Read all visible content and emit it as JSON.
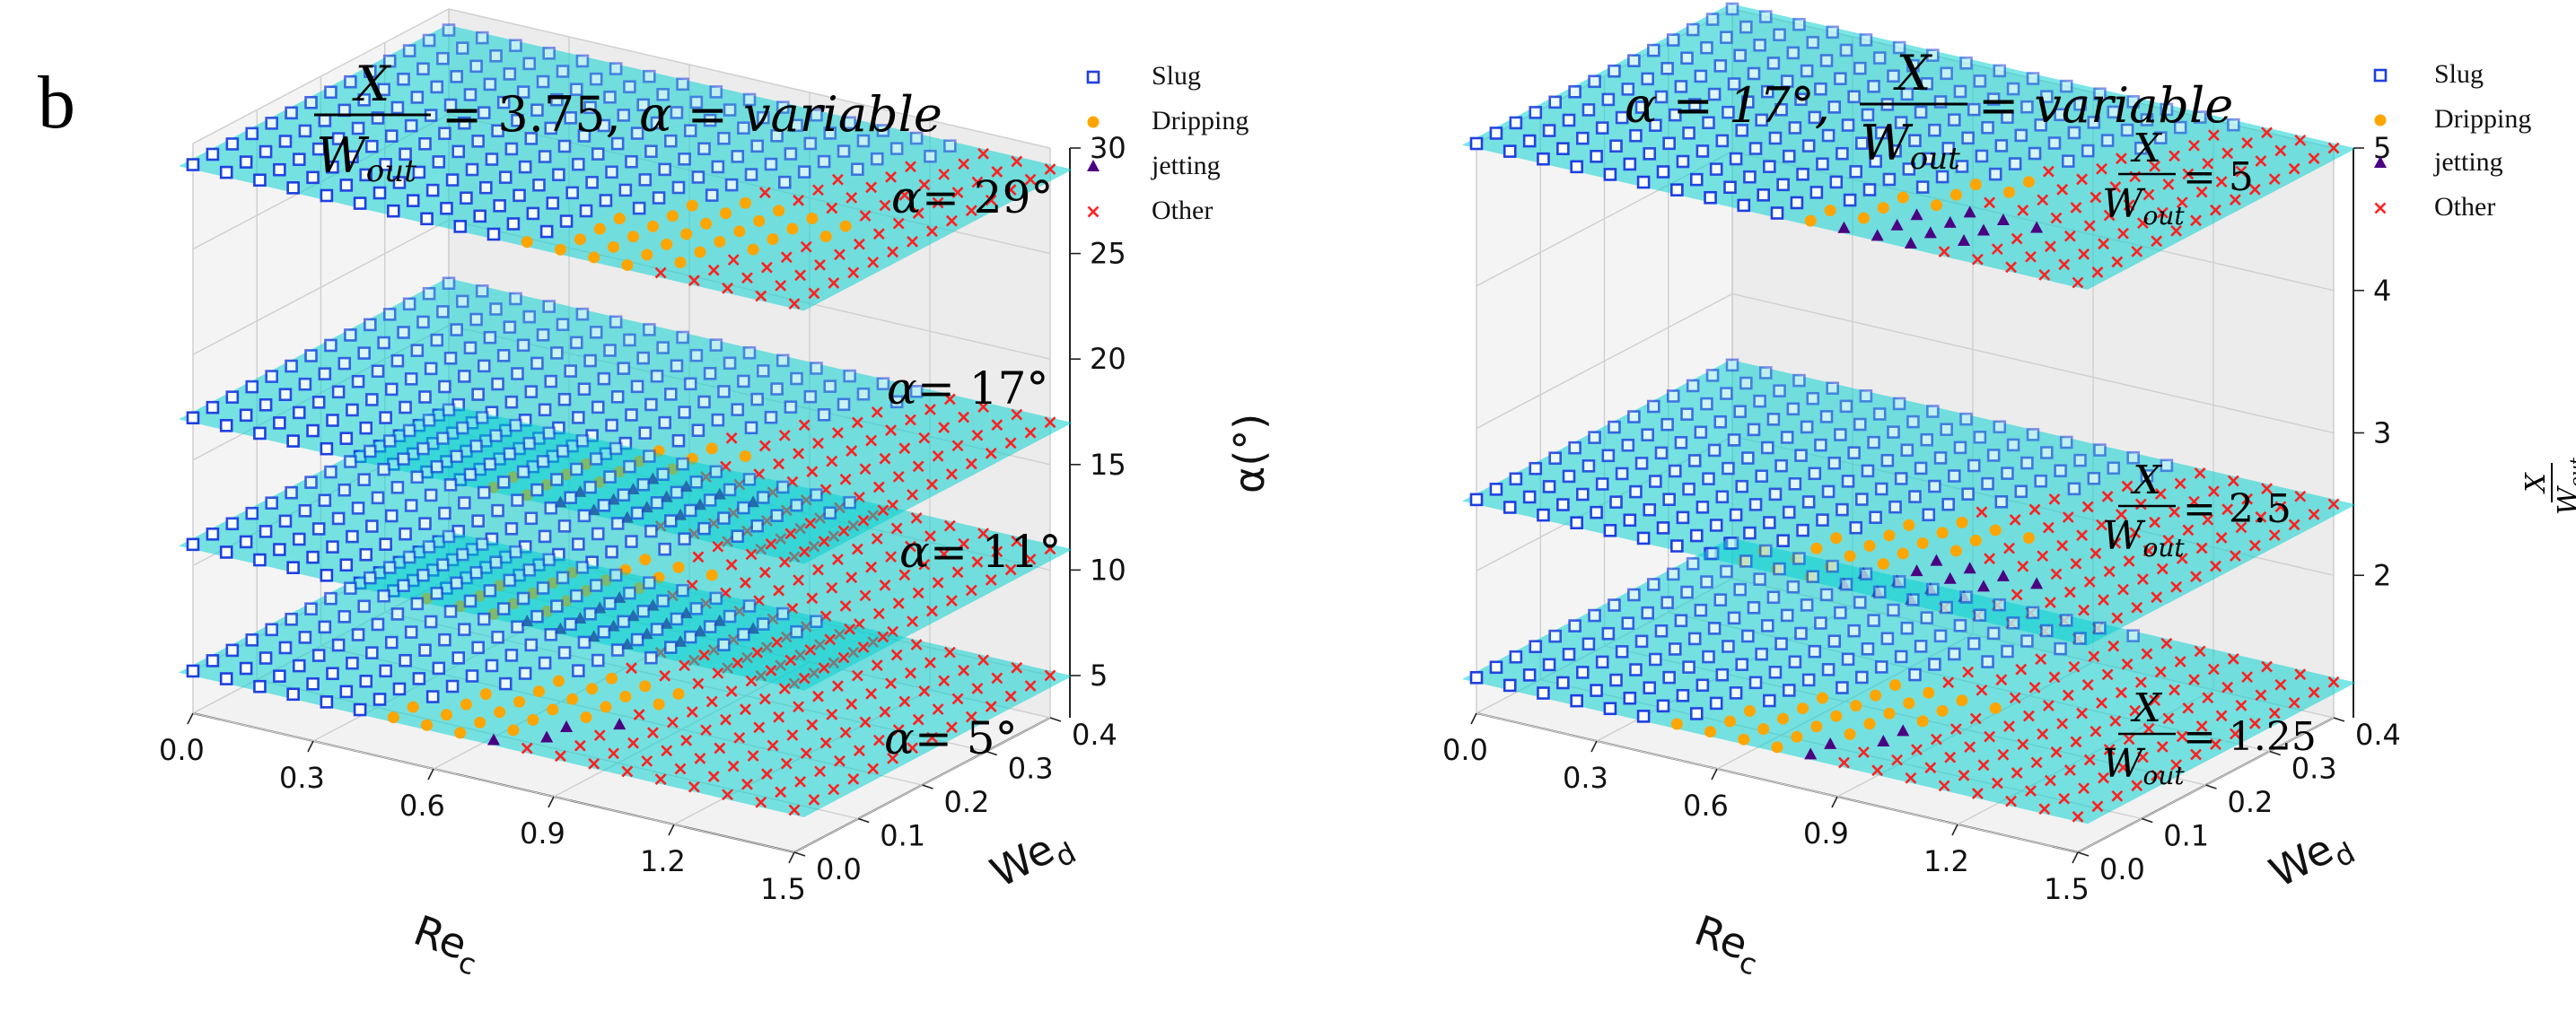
{
  "figure": {
    "panel_label": "b"
  },
  "chart_data": [
    {
      "type": "scatter3d",
      "title": "X/W_out = 3.75, α = variable",
      "title_parts": {
        "frac_num": "X",
        "frac_den_base": "W",
        "frac_den_sub": "out",
        "eq_value": "= 3.75,",
        "alpha_part": "α = variable"
      },
      "xlabel": "Re_c",
      "xlabel_base": "Re",
      "xlabel_sub": "c",
      "ylabel": "We_d",
      "ylabel_base": "We",
      "ylabel_sub": "d",
      "zlabel": "α(°)",
      "x_ticks": [
        "0.0",
        "0.3",
        "0.6",
        "0.9",
        "1.2",
        "1.5"
      ],
      "y_ticks": [
        "0.0",
        "0.1",
        "0.2",
        "0.3",
        "0.4"
      ],
      "z_ticks": [
        "5",
        "10",
        "15",
        "20",
        "25",
        "30"
      ],
      "xlim": [
        0,
        1.5
      ],
      "ylim": [
        0,
        0.4
      ],
      "zlim": [
        3,
        30
      ],
      "legend": [
        {
          "label": "Slug",
          "marker": "square-open",
          "color": "#1f3fe0"
        },
        {
          "label": "Dripping",
          "marker": "circle",
          "color": "#ffa500"
        },
        {
          "label": "jetting",
          "marker": "triangle",
          "color": "#4b0082"
        },
        {
          "label": "Other",
          "marker": "x",
          "color": "#ff2020"
        }
      ],
      "plane_color": "#00d0d0",
      "planes": [
        {
          "z": 5,
          "label": "α = 5°",
          "label_val": "= 5°",
          "regime_bounds": [
            0.55,
            0.73,
            0.79
          ]
        },
        {
          "z": 11,
          "label": "α = 11°",
          "label_val": "= 11°",
          "regime_bounds": [
            0.62,
            0.78,
            1.01
          ]
        },
        {
          "z": 17,
          "label": "α = 17°",
          "label_val": "= 17°",
          "regime_bounds": [
            0.72,
            0.83,
            1.01
          ]
        },
        {
          "z": 29,
          "label": "α = 29°",
          "label_val": "= 29°",
          "regime_bounds": [
            0.78,
            1.01,
            1.01
          ]
        }
      ]
    },
    {
      "type": "scatter3d",
      "title": "α = 17°, X/W_out = variable",
      "title_parts": {
        "alpha_part": "α = 17°,",
        "frac_num": "X",
        "frac_den_base": "W",
        "frac_den_sub": "out",
        "eq_value": "= variable"
      },
      "xlabel": "Re_c",
      "xlabel_base": "Re",
      "xlabel_sub": "c",
      "ylabel": "We_d",
      "ylabel_base": "We",
      "ylabel_sub": "d",
      "zlabel": "X/W_out",
      "x_ticks": [
        "0.0",
        "0.3",
        "0.6",
        "0.9",
        "1.2",
        "1.5"
      ],
      "y_ticks": [
        "0.0",
        "0.1",
        "0.2",
        "0.3",
        "0.4"
      ],
      "z_ticks": [
        "2",
        "3",
        "4",
        "5"
      ],
      "xlim": [
        0,
        1.5
      ],
      "ylim": [
        0,
        0.4
      ],
      "zlim": [
        1,
        5
      ],
      "legend": [
        {
          "label": "Slug",
          "marker": "square-open",
          "color": "#1f3fe0"
        },
        {
          "label": "Dripping",
          "marker": "circle",
          "color": "#ffa500"
        },
        {
          "label": "jetting",
          "marker": "triangle",
          "color": "#4b0082"
        },
        {
          "label": "Other",
          "marker": "x",
          "color": "#ff2020"
        }
      ],
      "plane_color": "#00d0d0",
      "planes": [
        {
          "z": 1.25,
          "label": "X/W_out = 1.25",
          "label_val": "= 1.25",
          "regime_bounds": [
            0.58,
            0.76,
            0.83
          ]
        },
        {
          "z": 2.5,
          "label": "X/W_out = 2.5",
          "label_val": "= 2.5",
          "regime_bounds": [
            0.66,
            0.82,
            1.01
          ]
        },
        {
          "z": 5,
          "label": "X/W_out = 5",
          "label_val": "= 5",
          "regime_bounds": [
            0.76,
            0.86,
            1.01
          ]
        }
      ]
    }
  ]
}
